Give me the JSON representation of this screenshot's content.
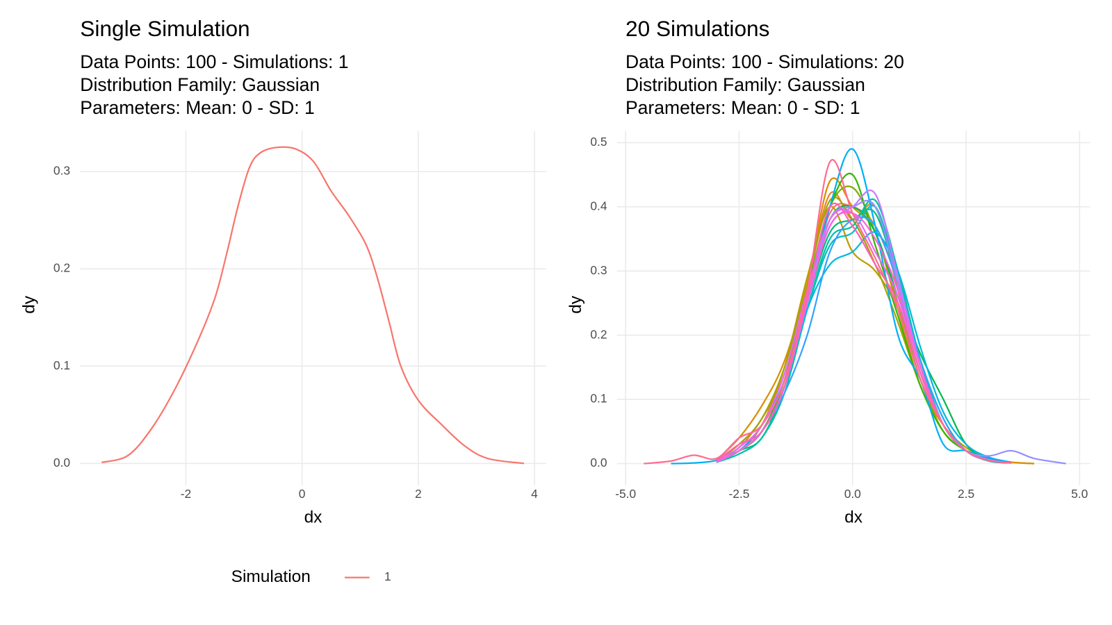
{
  "chart_data": [
    {
      "type": "line",
      "title": "Single Simulation",
      "subtitle": [
        "Data Points: 100 - Simulations: 1",
        "Distribution Family: Gaussian",
        "Parameters: Mean: 0 - SD: 1"
      ],
      "x_label": "dx",
      "y_label": "dy",
      "xlim": [
        -3.82,
        4.2
      ],
      "ylim": [
        -0.0226,
        0.3416
      ],
      "xticks": [
        -2,
        0,
        2,
        4
      ],
      "yticks": [
        {
          "value": 0,
          "label": "0.0"
        },
        {
          "value": 0.1,
          "label": "0.1"
        },
        {
          "value": 0.2,
          "label": "0.2"
        },
        {
          "value": 0.3,
          "label": "0.3"
        }
      ],
      "grid": true,
      "legend": "bottom",
      "legend_title": "Simulation",
      "x": [
        -3.45,
        -3.0,
        -2.6,
        -2.2,
        -1.8,
        -1.5,
        -1.3,
        -1.1,
        -0.9,
        -0.7,
        -0.4,
        -0.1,
        0.2,
        0.5,
        0.8,
        1.1,
        1.3,
        1.5,
        1.7,
        2.0,
        2.4,
        2.8,
        3.2,
        3.82
      ],
      "series": [
        {
          "name": "1",
          "color": "#F8766D",
          "values": [
            0.001,
            0.008,
            0.035,
            0.075,
            0.125,
            0.17,
            0.215,
            0.265,
            0.305,
            0.32,
            0.325,
            0.323,
            0.31,
            0.28,
            0.255,
            0.225,
            0.19,
            0.145,
            0.1,
            0.065,
            0.04,
            0.018,
            0.005,
            0.0
          ]
        }
      ]
    },
    {
      "type": "line",
      "title": "20 Simulations",
      "subtitle": [
        "Data Points: 100 - Simulations: 20",
        "Distribution Family: Gaussian",
        "Parameters: Mean: 0 - SD: 1"
      ],
      "x_label": "dx",
      "y_label": "dy",
      "xlim": [
        -5.19,
        5.23
      ],
      "ylim": [
        -0.034,
        0.518
      ],
      "xticks": [
        {
          "value": -5,
          "label": "-5.0"
        },
        {
          "value": -2.5,
          "label": "-2.5"
        },
        {
          "value": 0,
          "label": "0.0"
        },
        {
          "value": 2.5,
          "label": "2.5"
        },
        {
          "value": 5,
          "label": "5.0"
        }
      ],
      "yticks": [
        {
          "value": 0,
          "label": "0.0"
        },
        {
          "value": 0.1,
          "label": "0.1"
        },
        {
          "value": 0.2,
          "label": "0.2"
        },
        {
          "value": 0.3,
          "label": "0.3"
        },
        {
          "value": 0.4,
          "label": "0.4"
        },
        {
          "value": 0.5,
          "label": "0.5"
        }
      ],
      "grid": true,
      "legend": "none",
      "x": [
        -4.6,
        -4.0,
        -3.5,
        -3.0,
        -2.5,
        -2.0,
        -1.5,
        -1.0,
        -0.5,
        0.0,
        0.5,
        1.0,
        1.5,
        2.0,
        2.5,
        3.0,
        3.5,
        4.0,
        4.7
      ],
      "series": [
        {
          "color": "#F8766D",
          "values": [
            null,
            null,
            null,
            0.003,
            0.02,
            0.05,
            0.12,
            0.26,
            0.39,
            0.4,
            0.37,
            0.28,
            0.15,
            0.06,
            0.02,
            0.005,
            0.001,
            null,
            null
          ]
        },
        {
          "color": "#EA8331",
          "values": [
            null,
            null,
            null,
            0.004,
            0.025,
            0.07,
            0.14,
            0.28,
            0.42,
            0.38,
            0.4,
            0.27,
            0.14,
            0.06,
            0.02,
            0.006,
            0.002,
            0.0,
            null
          ]
        },
        {
          "color": "#D89000",
          "values": [
            null,
            null,
            null,
            0.005,
            0.04,
            0.09,
            0.16,
            0.28,
            0.44,
            0.4,
            0.36,
            0.24,
            0.12,
            0.06,
            0.02,
            0.006,
            0.002,
            0.0,
            null
          ]
        },
        {
          "color": "#C09B00",
          "values": [
            null,
            null,
            null,
            0.002,
            0.02,
            0.06,
            0.15,
            0.29,
            0.4,
            0.33,
            0.3,
            0.24,
            0.13,
            0.06,
            0.025,
            0.008,
            0.002,
            null,
            null
          ]
        },
        {
          "color": "#A3A500",
          "values": [
            null,
            null,
            null,
            0.003,
            0.03,
            0.07,
            0.15,
            0.28,
            0.41,
            0.38,
            0.31,
            0.22,
            0.12,
            0.05,
            0.02,
            0.005,
            0.001,
            null,
            null
          ]
        },
        {
          "color": "#7CAE00",
          "values": [
            null,
            null,
            null,
            0.004,
            0.02,
            0.05,
            0.13,
            0.27,
            0.4,
            0.43,
            0.36,
            0.25,
            0.13,
            0.05,
            0.02,
            0.005,
            0.001,
            null,
            null
          ]
        },
        {
          "color": "#39B600",
          "values": [
            null,
            null,
            null,
            0.002,
            0.02,
            0.05,
            0.13,
            0.27,
            0.4,
            0.45,
            0.34,
            0.23,
            0.12,
            0.05,
            0.02,
            0.005,
            0.001,
            null,
            null
          ]
        },
        {
          "color": "#00BB4E",
          "values": [
            null,
            null,
            null,
            0.003,
            0.02,
            0.05,
            0.12,
            0.25,
            0.38,
            0.4,
            0.36,
            0.26,
            0.17,
            0.1,
            0.03,
            0.006,
            0.001,
            null,
            null
          ]
        },
        {
          "color": "#00BF7D",
          "values": [
            null,
            null,
            null,
            0.003,
            0.02,
            0.04,
            0.12,
            0.25,
            0.36,
            0.38,
            0.39,
            0.28,
            0.15,
            0.06,
            0.02,
            0.005,
            0.001,
            null,
            null
          ]
        },
        {
          "color": "#00C1A3",
          "values": [
            null,
            null,
            null,
            0.002,
            0.015,
            0.04,
            0.11,
            0.24,
            0.35,
            0.37,
            0.41,
            0.3,
            0.16,
            0.06,
            0.02,
            0.004,
            0.001,
            null,
            null
          ]
        },
        {
          "color": "#00BFC4",
          "values": [
            null,
            null,
            null,
            0.003,
            0.02,
            0.05,
            0.12,
            0.24,
            0.34,
            0.36,
            0.4,
            0.29,
            0.16,
            0.07,
            0.02,
            0.008,
            0.002,
            null,
            null
          ]
        },
        {
          "color": "#00BAE0",
          "values": [
            null,
            null,
            null,
            0.003,
            0.02,
            0.05,
            0.12,
            0.24,
            0.31,
            0.33,
            0.36,
            0.3,
            0.18,
            0.08,
            0.03,
            0.01,
            0.002,
            null,
            null
          ]
        },
        {
          "color": "#00B0F6",
          "values": [
            null,
            0.0,
            0.001,
            0.005,
            0.02,
            0.06,
            0.13,
            0.25,
            0.4,
            0.49,
            0.37,
            0.2,
            0.13,
            0.03,
            0.02,
            0.008,
            0.002,
            null,
            null
          ]
        },
        {
          "color": "#35A2FF",
          "values": [
            null,
            null,
            null,
            0.004,
            0.02,
            0.05,
            0.11,
            0.2,
            0.33,
            0.38,
            0.37,
            0.28,
            0.16,
            0.07,
            0.02,
            0.005,
            0.001,
            null,
            null
          ]
        },
        {
          "color": "#9590FF",
          "values": [
            null,
            null,
            null,
            0.002,
            0.02,
            0.05,
            0.12,
            0.25,
            0.38,
            0.4,
            0.4,
            0.28,
            0.15,
            0.06,
            0.02,
            0.012,
            0.02,
            0.008,
            0.0
          ]
        },
        {
          "color": "#C77CFF",
          "values": [
            null,
            null,
            null,
            0.003,
            0.02,
            0.05,
            0.12,
            0.26,
            0.37,
            0.4,
            0.42,
            0.29,
            0.15,
            0.06,
            0.02,
            0.005,
            0.001,
            null,
            null
          ]
        },
        {
          "color": "#E76BF3",
          "values": [
            null,
            null,
            null,
            0.004,
            0.025,
            0.06,
            0.14,
            0.27,
            0.38,
            0.39,
            0.33,
            0.26,
            0.14,
            0.06,
            0.02,
            0.006,
            0.001,
            null,
            null
          ]
        },
        {
          "color": "#FA62DB",
          "values": [
            null,
            null,
            null,
            0.003,
            0.02,
            0.05,
            0.12,
            0.25,
            0.37,
            0.39,
            0.35,
            0.27,
            0.15,
            0.06,
            0.02,
            0.005,
            0.001,
            null,
            null
          ]
        },
        {
          "color": "#FF62BC",
          "values": [
            null,
            null,
            null,
            0.004,
            0.03,
            0.05,
            0.12,
            0.26,
            0.4,
            0.37,
            0.31,
            0.25,
            0.14,
            0.06,
            0.02,
            0.005,
            0.001,
            null,
            null
          ]
        },
        {
          "color": "#FF6C91",
          "values": [
            0.0,
            0.004,
            0.013,
            0.008,
            0.04,
            0.06,
            0.13,
            0.27,
            0.47,
            0.39,
            0.32,
            0.24,
            0.13,
            0.06,
            0.02,
            0.005,
            0.001,
            null,
            null
          ]
        }
      ]
    }
  ]
}
